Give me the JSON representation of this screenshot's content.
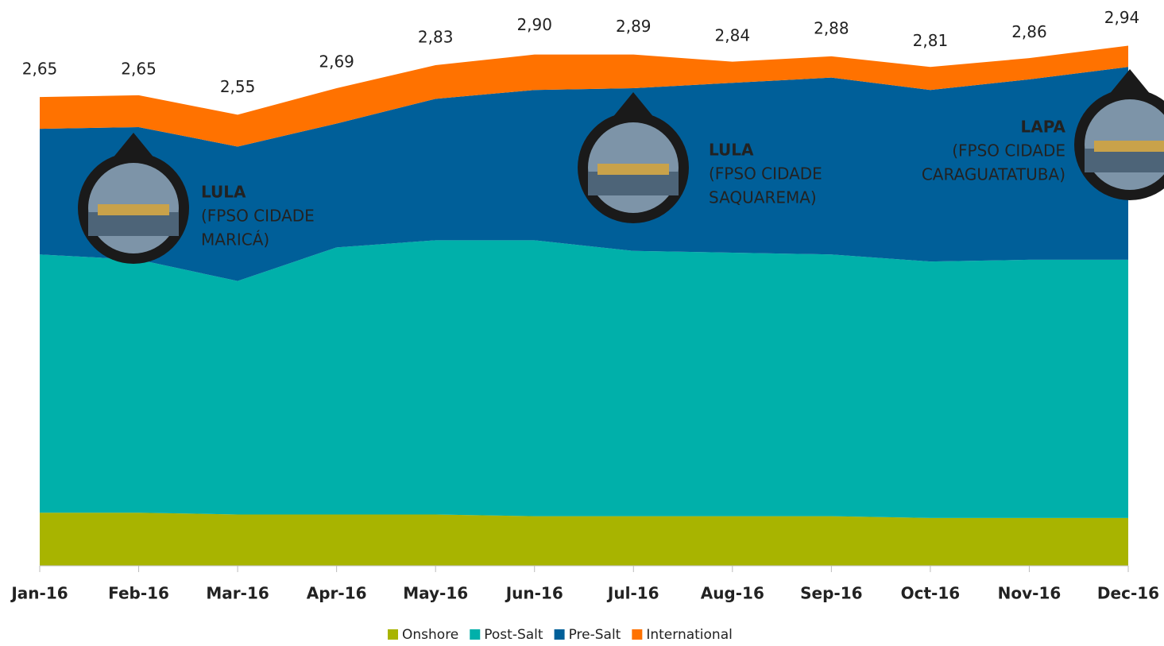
{
  "chart_data": {
    "type": "stacked-area",
    "categories": [
      "Jan-16",
      "Feb-16",
      "Mar-16",
      "Apr-16",
      "May-16",
      "Jun-16",
      "Jul-16",
      "Aug-16",
      "Sep-16",
      "Oct-16",
      "Nov-16",
      "Dec-16"
    ],
    "series": [
      {
        "name": "Onshore",
        "color": "#a8b400",
        "values": [
          0.3,
          0.3,
          0.29,
          0.29,
          0.29,
          0.28,
          0.28,
          0.28,
          0.28,
          0.27,
          0.27,
          0.27
        ]
      },
      {
        "name": "Post-Salt",
        "color": "#00b0aa",
        "values": [
          1.46,
          1.43,
          1.32,
          1.51,
          1.55,
          1.56,
          1.5,
          1.49,
          1.48,
          1.45,
          1.46,
          1.46
        ]
      },
      {
        "name": "Pre-Salt",
        "color": "#005f99",
        "values": [
          0.71,
          0.75,
          0.76,
          0.7,
          0.8,
          0.85,
          0.92,
          0.96,
          1.0,
          0.97,
          1.02,
          1.09
        ]
      },
      {
        "name": "International",
        "color": "#ff7200",
        "values": [
          0.18,
          0.18,
          0.18,
          0.2,
          0.19,
          0.2,
          0.19,
          0.12,
          0.12,
          0.13,
          0.12,
          0.12
        ]
      }
    ],
    "total": {
      "values": [
        2.65,
        2.65,
        2.55,
        2.69,
        2.83,
        2.9,
        2.89,
        2.84,
        2.88,
        2.81,
        2.86,
        2.94
      ],
      "value_labels": [
        "2,65",
        "2,65",
        "2,55",
        "2,69",
        "2,83",
        "2,90",
        "2,89",
        "2,84",
        "2,88",
        "2,81",
        "2,86",
        "2,94"
      ]
    },
    "annotations": [
      {
        "title": "LULA",
        "lines": [
          "(FPSO CIDADE",
          "MARICÁ)"
        ]
      },
      {
        "title": "LULA",
        "lines": [
          "(FPSO CIDADE",
          "SAQUAREMA)"
        ]
      },
      {
        "title": "LAPA",
        "lines": [
          "(FPSO CIDADE",
          "CARAGUATATUBA)"
        ]
      }
    ]
  }
}
